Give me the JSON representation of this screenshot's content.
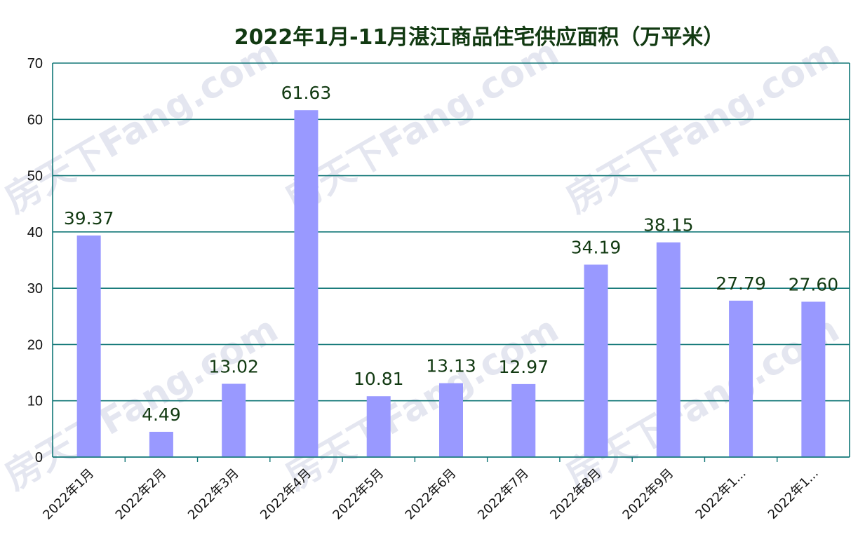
{
  "colors": {
    "bar": "#9999ff",
    "grid": "#117777",
    "axis": "#117777",
    "title": "#123a12"
  },
  "watermark": "房天下Fang.com",
  "chart_data": {
    "type": "bar",
    "title": "2022年1月-11月湛江商品住宅供应面积（万平米）",
    "xlabel": "",
    "ylabel": "",
    "ylim": [
      0,
      70
    ],
    "yticks": [
      0,
      10,
      20,
      30,
      40,
      50,
      60,
      70
    ],
    "grid": true,
    "categories": [
      "2022年1月",
      "2022年2月",
      "2022年3月",
      "2022年4月",
      "2022年5月",
      "2022年6月",
      "2022年7月",
      "2022年8月",
      "2022年9月",
      "2022年1...",
      "2022年1..."
    ],
    "values": [
      39.37,
      4.49,
      13.02,
      61.63,
      10.81,
      13.13,
      12.97,
      34.19,
      38.15,
      27.79,
      27.6
    ],
    "value_labels": [
      "39.37",
      "4.49",
      "13.02",
      "61.63",
      "10.81",
      "13.13",
      "12.97",
      "34.19",
      "38.15",
      "27.79",
      "27.60"
    ]
  }
}
